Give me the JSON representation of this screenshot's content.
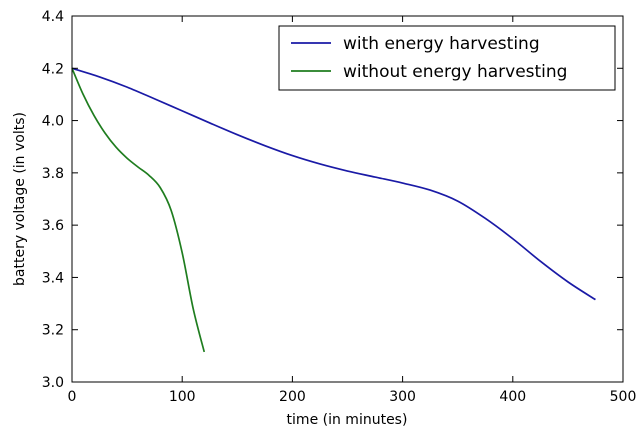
{
  "chart_data": {
    "type": "line",
    "title": "",
    "xlabel": "time (in minutes)",
    "ylabel": "battery voltage (in volts)",
    "xlim": [
      0,
      500
    ],
    "ylim": [
      3.0,
      4.4
    ],
    "xticks": [
      0,
      100,
      200,
      300,
      400,
      500
    ],
    "yticks": [
      3.0,
      3.2,
      3.4,
      3.6,
      3.8,
      4.0,
      4.2,
      4.4
    ],
    "xtick_labels": [
      "0",
      "100",
      "200",
      "300",
      "400",
      "500"
    ],
    "ytick_labels": [
      "3.0",
      "3.2",
      "3.4",
      "3.6",
      "3.8",
      "4.0",
      "4.2",
      "4.4"
    ],
    "grid": false,
    "legend_position": "top-right",
    "series": [
      {
        "name": "with energy harvesting",
        "color": "#1a1aa6",
        "x": [
          0,
          25,
          50,
          75,
          100,
          125,
          150,
          175,
          200,
          225,
          250,
          275,
          300,
          325,
          350,
          375,
          400,
          425,
          450,
          475
        ],
        "y": [
          4.2,
          4.167,
          4.128,
          4.083,
          4.037,
          3.991,
          3.946,
          3.904,
          3.866,
          3.834,
          3.807,
          3.784,
          3.761,
          3.734,
          3.692,
          3.626,
          3.548,
          3.462,
          3.383,
          3.315
        ]
      },
      {
        "name": "without energy harvesting",
        "color": "#1f7d1f",
        "x": [
          0,
          10,
          20,
          30,
          40,
          50,
          60,
          70,
          80,
          90,
          100,
          110,
          120
        ],
        "y": [
          4.2,
          4.101,
          4.019,
          3.952,
          3.898,
          3.856,
          3.822,
          3.79,
          3.744,
          3.656,
          3.494,
          3.28,
          3.115
        ]
      }
    ]
  }
}
